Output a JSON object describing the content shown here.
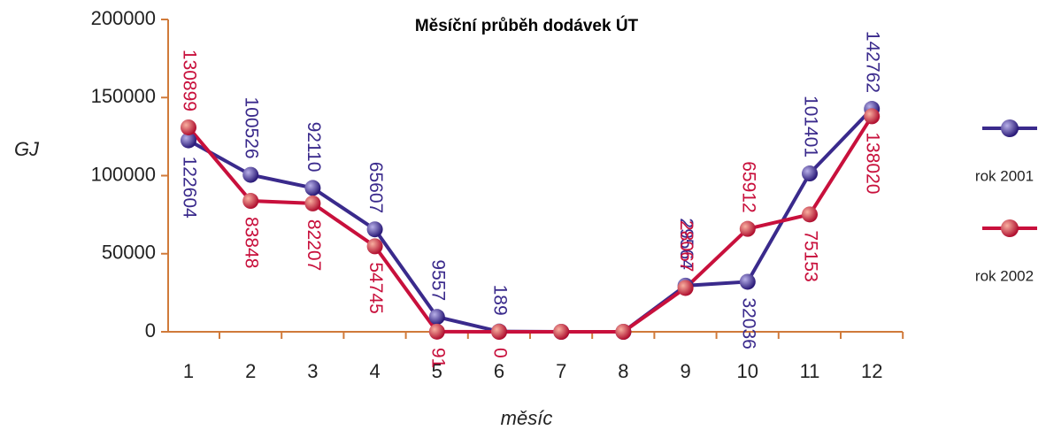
{
  "chart_data": {
    "type": "line",
    "title": "Měsíční průběh dodávek ÚT",
    "x_label": "měsíc",
    "y_label": "GJ",
    "categories": [
      "1",
      "2",
      "3",
      "4",
      "5",
      "6",
      "7",
      "8",
      "9",
      "10",
      "11",
      "12"
    ],
    "series": [
      {
        "name": "rok 2001",
        "color": "#3a2a8c",
        "values": [
          122604,
          100526,
          92110,
          65607,
          9557,
          189,
          0,
          0,
          29564,
          32036,
          101401,
          142762
        ],
        "value_labels": [
          "122604",
          "100526",
          "92110",
          "65607",
          "9557",
          "189",
          null,
          null,
          "29564",
          "32036",
          "101401",
          "142762"
        ]
      },
      {
        "name": "rok 2002",
        "color": "#c8103c",
        "values": [
          130899,
          83848,
          82207,
          54745,
          91,
          0,
          0,
          0,
          28067,
          65912,
          75153,
          138020
        ],
        "value_labels": [
          "130899",
          "83848",
          "82207",
          "54745",
          "91",
          "0",
          null,
          null,
          "28067",
          "65912",
          "75153",
          "138020"
        ]
      }
    ],
    "ylim": [
      0,
      200000
    ],
    "yticks": [
      0,
      50000,
      100000,
      150000,
      200000
    ]
  }
}
